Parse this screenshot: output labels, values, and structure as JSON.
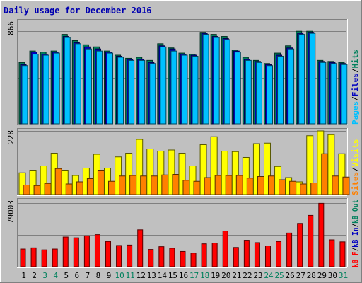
{
  "chart_data": {
    "type": "bar",
    "title": "Daily usage for December 2016",
    "categories": [
      "1",
      "2",
      "3",
      "4",
      "5",
      "6",
      "7",
      "8",
      "9",
      "10",
      "11",
      "12",
      "13",
      "14",
      "15",
      "16",
      "17",
      "18",
      "19",
      "20",
      "21",
      "22",
      "23",
      "24",
      "25",
      "26",
      "27",
      "28",
      "29",
      "30",
      "31"
    ],
    "weekend_days": [
      "3",
      "4",
      "10",
      "11",
      "17",
      "18",
      "24",
      "25",
      "31"
    ],
    "panels": [
      {
        "id": "hits",
        "max_label": "866",
        "ylim": [
          0,
          980
        ],
        "series": [
          {
            "name": "Hits",
            "color": "#00805c",
            "values": [
              590,
              700,
              690,
              700,
              860,
              800,
              760,
              740,
              700,
              660,
              630,
              640,
              610,
              770,
              730,
              680,
              670,
              880,
              860,
              840,
              710,
              640,
              610,
              580,
              680,
              750,
              890,
              890,
              610,
              600,
              590
            ]
          },
          {
            "name": "Files",
            "color": "#0000c0",
            "values": [
              570,
              690,
              670,
              690,
              840,
              780,
              740,
              720,
              690,
              650,
              620,
              620,
              590,
              750,
              720,
              670,
              660,
              870,
              840,
              820,
              700,
              620,
              600,
              570,
              660,
              730,
              870,
              880,
              600,
              590,
              580
            ]
          },
          {
            "name": "Pages",
            "color": "#00c0ff",
            "values": [
              560,
              670,
              660,
              680,
              830,
              770,
              720,
              700,
              680,
              640,
              610,
              610,
              580,
              740,
              700,
              660,
              650,
              860,
              830,
              810,
              690,
              610,
              590,
              560,
              650,
              720,
              860,
              870,
              590,
              580,
              570
            ]
          }
        ]
      },
      {
        "id": "visits",
        "max_label": "228",
        "ylim": [
          0,
          240
        ],
        "series": [
          {
            "name": "Visits",
            "color": "#ffff00",
            "values": [
              82,
              92,
              108,
              156,
              92,
              72,
              100,
              152,
              100,
              142,
              156,
              208,
              172,
              164,
              168,
              156,
              108,
              188,
              218,
              164,
              162,
              140,
              192,
              194,
              106,
              64,
              48,
              222,
              240,
              226,
              154
            ]
          },
          {
            "name": "Sites",
            "color": "#ff8000",
            "values": [
              36,
              34,
              42,
              98,
              40,
              48,
              60,
              92,
              50,
              70,
              72,
              70,
              70,
              74,
              76,
              54,
              50,
              64,
              72,
              72,
              72,
              62,
              68,
              70,
              56,
              50,
              40,
              44,
              154,
              70,
              66
            ]
          }
        ]
      },
      {
        "id": "kbytes",
        "max_label": "79003",
        "ylim": [
          0,
          82000
        ],
        "series": [
          {
            "name": "kB F",
            "color": "#ff0000",
            "values": [
              22000,
              23500,
              21000,
              22000,
              37000,
              36000,
              38500,
              40000,
              31500,
              26500,
              27000,
              46000,
              21500,
              25000,
              23000,
              19000,
              17000,
              28500,
              29500,
              44500,
              24000,
              33000,
              30000,
              26000,
              31500,
              42000,
              54000,
              64000,
              79003,
              33500,
              31000
            ]
          }
        ],
        "legend_extra": [
          {
            "name": "kB In",
            "color": "#0000c0"
          },
          {
            "name": "kB Out",
            "color": "#00805c"
          }
        ]
      }
    ],
    "legend_separator": "/"
  }
}
